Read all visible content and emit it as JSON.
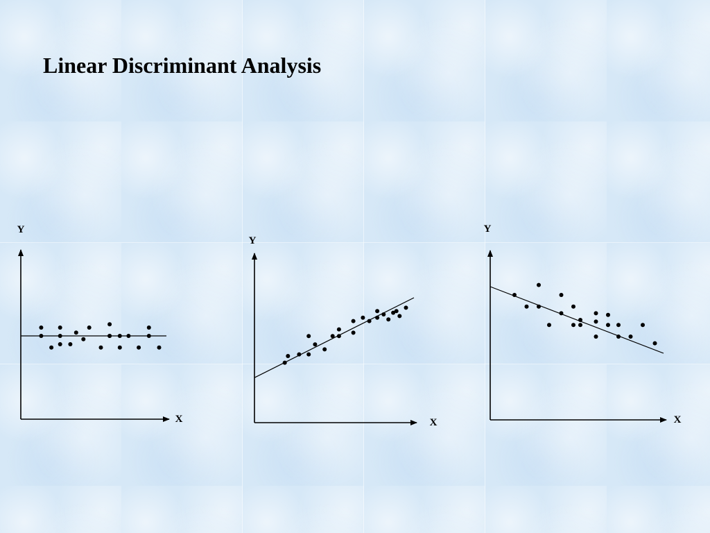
{
  "slide": {
    "title": "Linear Discriminant Analysis"
  },
  "colors": {
    "ink": "#000000",
    "background": "#d6e8f7"
  },
  "chart_data": [
    {
      "type": "scatter",
      "title": "",
      "xlabel": "X",
      "ylabel": "Y",
      "xlim": [
        0,
        10
      ],
      "ylim": [
        0,
        10
      ],
      "grid": false,
      "trend_line": {
        "x": [
          0,
          10
        ],
        "y": [
          5.0,
          5.0
        ]
      },
      "points": {
        "x": [
          1.4,
          1.4,
          2.1,
          2.7,
          2.7,
          2.7,
          3.4,
          3.8,
          4.3,
          4.7,
          5.5,
          6.1,
          6.1,
          6.1,
          6.8,
          6.8,
          7.4,
          8.1,
          8.8,
          8.8,
          9.5
        ],
        "y": [
          5.5,
          5.0,
          4.3,
          5.5,
          5.0,
          4.5,
          4.5,
          5.2,
          4.8,
          5.5,
          4.3,
          5.7,
          5.0,
          5.0,
          4.3,
          5.0,
          5.0,
          4.3,
          5.5,
          5.0,
          4.3
        ]
      }
    },
    {
      "type": "scatter",
      "title": "",
      "xlabel": "X",
      "ylabel": "Y",
      "xlim": [
        0,
        10
      ],
      "ylim": [
        0,
        10
      ],
      "grid": false,
      "trend_line": {
        "x": [
          0,
          10
        ],
        "y": [
          2.7,
          7.5
        ]
      },
      "points": {
        "x": [
          1.9,
          2.1,
          2.8,
          3.4,
          3.4,
          3.8,
          4.4,
          4.9,
          5.3,
          5.3,
          6.2,
          6.2,
          6.8,
          7.2,
          7.7,
          7.7,
          8.1,
          8.4,
          8.7,
          8.9,
          9.1,
          9.5
        ],
        "y": [
          3.6,
          4.0,
          4.1,
          4.1,
          5.2,
          4.7,
          4.4,
          5.2,
          5.2,
          5.6,
          5.4,
          6.1,
          6.3,
          6.1,
          6.3,
          6.7,
          6.5,
          6.2,
          6.6,
          6.7,
          6.4,
          6.9
        ]
      }
    },
    {
      "type": "scatter",
      "title": "",
      "xlabel": "X",
      "ylabel": "Y",
      "xlim": [
        0,
        10
      ],
      "ylim": [
        0,
        10
      ],
      "grid": false,
      "trend_line": {
        "x": [
          0,
          10
        ],
        "y": [
          8.0,
          4.0
        ]
      },
      "points": {
        "x": [
          1.4,
          2.1,
          2.8,
          2.8,
          3.4,
          4.1,
          4.1,
          4.8,
          4.8,
          5.2,
          5.2,
          6.1,
          6.1,
          6.1,
          6.8,
          6.8,
          7.4,
          7.4,
          8.1,
          8.8,
          9.5
        ],
        "y": [
          7.5,
          6.8,
          8.1,
          6.8,
          5.7,
          7.5,
          6.4,
          6.8,
          5.7,
          5.7,
          6.0,
          6.4,
          5.9,
          5.0,
          5.7,
          6.3,
          5.7,
          5.0,
          5.0,
          5.7,
          4.6
        ]
      }
    }
  ]
}
